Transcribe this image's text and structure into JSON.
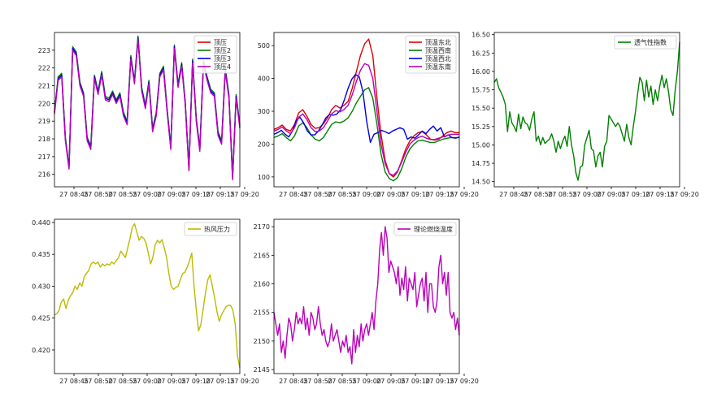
{
  "chart_data": [
    {
      "type": "line",
      "x_ticks": [
        "27 08:45",
        "27 08:50",
        "27 08:55",
        "27 09:00",
        "27 09:05",
        "27 09:10",
        "27 09:15",
        "27 09:20"
      ],
      "x_range": [
        "08:41",
        "09:19"
      ],
      "ylim": [
        215.3,
        224
      ],
      "yticks": [
        216,
        217,
        218,
        219,
        220,
        221,
        222,
        223
      ],
      "legend_position": "top-right",
      "series": [
        {
          "name": "顶压",
          "color": "#dd0000",
          "y": [
            219.5,
            221.4,
            221.6,
            218.0,
            216.4,
            223.1,
            222.8,
            221.1,
            220.5,
            218.0,
            217.5,
            221.5,
            220.6,
            221.7,
            220.3,
            220.2,
            220.6,
            220.1,
            220.5,
            219.4,
            218.9,
            222.6,
            221.2,
            223.7,
            220.8,
            219.8,
            221.2,
            218.5,
            219.4,
            221.6,
            222.0,
            219.6,
            217.5,
            223.2,
            221.0,
            222.2,
            220.0,
            216.3,
            222.4,
            219.1,
            217.4,
            222.3,
            221.4,
            220.7,
            220.5,
            218.3,
            217.8,
            221.9,
            220.4,
            215.8,
            220.4,
            218.7
          ]
        },
        {
          "name": "顶压2",
          "color": "#008000",
          "y": [
            219.5,
            221.5,
            221.7,
            218.1,
            216.4,
            223.2,
            222.9,
            221.2,
            220.6,
            218.1,
            217.6,
            221.6,
            220.7,
            221.8,
            220.4,
            220.3,
            220.7,
            220.2,
            220.6,
            219.5,
            219.0,
            222.7,
            221.3,
            223.8,
            220.9,
            219.9,
            221.3,
            218.6,
            219.5,
            221.7,
            222.1,
            219.7,
            217.6,
            223.3,
            221.1,
            222.3,
            220.1,
            216.4,
            222.5,
            219.2,
            217.5,
            222.4,
            221.5,
            220.8,
            220.6,
            218.4,
            217.9,
            222.0,
            220.5,
            215.9,
            220.5,
            218.8
          ]
        },
        {
          "name": "顶压3",
          "color": "#0000dd",
          "y": [
            219.5,
            221.4,
            221.6,
            218.0,
            216.4,
            223.1,
            222.8,
            221.1,
            220.5,
            218.0,
            217.5,
            221.5,
            220.6,
            221.7,
            220.3,
            220.2,
            220.6,
            220.1,
            220.5,
            219.4,
            218.9,
            222.6,
            221.2,
            223.7,
            220.8,
            219.8,
            221.2,
            218.5,
            219.4,
            221.6,
            222.0,
            219.6,
            217.5,
            223.2,
            221.0,
            222.2,
            220.0,
            216.3,
            222.4,
            219.1,
            217.4,
            222.3,
            221.4,
            220.7,
            220.5,
            218.3,
            217.8,
            221.9,
            220.4,
            215.8,
            220.4,
            218.7
          ]
        },
        {
          "name": "顶压4",
          "color": "#bb00bb",
          "y": [
            219.4,
            221.3,
            221.5,
            217.9,
            216.3,
            223.0,
            222.7,
            221.0,
            220.4,
            217.9,
            217.4,
            221.4,
            220.5,
            221.6,
            220.2,
            220.1,
            220.5,
            220.0,
            220.4,
            219.3,
            218.8,
            222.5,
            221.1,
            223.6,
            220.7,
            219.7,
            221.1,
            218.4,
            219.3,
            221.5,
            221.9,
            219.5,
            217.4,
            223.1,
            220.9,
            222.1,
            219.9,
            216.2,
            222.3,
            219.0,
            217.3,
            222.2,
            221.3,
            220.6,
            220.4,
            218.2,
            217.7,
            221.8,
            220.3,
            215.7,
            220.3,
            218.6
          ]
        }
      ]
    },
    {
      "type": "line",
      "x_ticks": [
        "27 08:45",
        "27 08:50",
        "27 08:55",
        "27 09:00",
        "27 09:05",
        "27 09:10",
        "27 09:15",
        "27 09:20"
      ],
      "x_range": [
        "08:41",
        "09:19"
      ],
      "ylim": [
        70,
        540
      ],
      "yticks": [
        100,
        200,
        300,
        400,
        500
      ],
      "legend_position": "top-right",
      "series": [
        {
          "name": "顶温东北",
          "color": "#dd0000",
          "y": [
            245,
            250,
            258,
            245,
            240,
            260,
            295,
            305,
            285,
            260,
            248,
            250,
            262,
            280,
            305,
            318,
            310,
            318,
            330,
            370,
            420,
            470,
            505,
            520,
            470,
            340,
            230,
            150,
            110,
            100,
            115,
            150,
            185,
            210,
            225,
            235,
            238,
            228,
            215,
            212,
            215,
            225,
            235,
            240,
            235,
            235
          ]
        },
        {
          "name": "顶温西南",
          "color": "#008000",
          "y": [
            220,
            225,
            232,
            220,
            210,
            225,
            255,
            265,
            250,
            228,
            215,
            210,
            220,
            240,
            260,
            268,
            265,
            270,
            280,
            300,
            325,
            345,
            365,
            372,
            340,
            260,
            170,
            115,
            95,
            88,
            98,
            125,
            160,
            185,
            200,
            210,
            212,
            208,
            205,
            205,
            210,
            215,
            218,
            220,
            220,
            220
          ]
        },
        {
          "name": "顶温西北",
          "color": "#0000dd",
          "y": [
            230,
            235,
            242,
            230,
            222,
            240,
            272,
            282,
            265,
            240,
            228,
            228,
            240,
            258,
            280,
            290,
            288,
            292,
            305,
            335,
            370,
            398,
            412,
            405,
            360,
            270,
            205,
            230,
            235,
            242,
            238,
            232,
            240,
            245,
            250,
            245,
            215,
            222,
            218,
            228,
            240,
            232,
            245,
            255,
            240,
            250,
            222,
            228,
            220,
            218,
            222
          ]
        },
        {
          "name": "顶温东南",
          "color": "#bb00bb",
          "y": [
            240,
            245,
            252,
            240,
            232,
            250,
            282,
            292,
            275,
            250,
            238,
            240,
            250,
            270,
            292,
            302,
            298,
            305,
            318,
            350,
            390,
            425,
            445,
            440,
            400,
            300,
            200,
            140,
            110,
            105,
            118,
            145,
            175,
            200,
            212,
            220,
            224,
            218,
            214,
            214,
            218,
            222,
            226,
            230,
            230,
            230
          ]
        }
      ]
    },
    {
      "type": "line",
      "x_ticks": [
        "27 08:45",
        "27 08:50",
        "27 08:55",
        "27 09:00",
        "27 09:05",
        "27 09:10",
        "27 09:15",
        "27 09:20"
      ],
      "x_range": [
        "08:41",
        "09:19"
      ],
      "ylim": [
        14.43,
        16.53
      ],
      "yticks": [
        14.5,
        14.75,
        15.0,
        15.25,
        15.5,
        15.75,
        16.0,
        16.25,
        16.5
      ],
      "legend_position": "top-right",
      "series": [
        {
          "name": "透气性指数",
          "color": "#008000",
          "y": [
            15.85,
            15.9,
            15.78,
            15.72,
            15.65,
            15.55,
            15.18,
            15.45,
            15.3,
            15.25,
            15.18,
            15.42,
            15.22,
            15.38,
            15.3,
            15.28,
            15.2,
            15.35,
            15.45,
            15.05,
            15.12,
            15.0,
            15.1,
            15.02,
            15.05,
            15.08,
            15.15,
            15.05,
            14.9,
            15.05,
            14.95,
            15.05,
            15.12,
            14.98,
            15.25,
            15.0,
            14.85,
            14.62,
            14.52,
            14.7,
            14.72,
            15.0,
            15.1,
            15.2,
            14.95,
            14.92,
            14.7,
            14.85,
            14.9,
            14.7,
            14.98,
            15.05,
            15.4,
            15.35,
            15.3,
            15.25,
            15.3,
            15.25,
            15.15,
            15.05,
            15.28,
            15.1,
            15.0,
            15.25,
            15.45,
            15.7,
            15.92,
            15.85,
            15.6,
            15.88,
            15.65,
            15.8,
            15.55,
            15.75,
            15.6,
            15.8,
            15.95,
            15.78,
            15.9,
            15.72,
            15.48,
            15.4,
            15.75,
            16.0,
            16.4
          ]
        }
      ]
    },
    {
      "type": "line",
      "x_ticks": [
        "27 08:45",
        "27 08:50",
        "27 08:55",
        "27 09:00",
        "27 09:05",
        "27 09:10",
        "27 09:15",
        "27 09:20"
      ],
      "x_range": [
        "08:41",
        "09:19"
      ],
      "ylim": [
        0.4163,
        0.4405
      ],
      "yticks": [
        0.42,
        0.425,
        0.43,
        0.435,
        0.44
      ],
      "legend_position": "top-right",
      "series": [
        {
          "name": "热风压力",
          "color": "#bbbb00",
          "y": [
            0.4255,
            0.4257,
            0.4262,
            0.4275,
            0.428,
            0.4265,
            0.4278,
            0.4285,
            0.429,
            0.43,
            0.4295,
            0.4305,
            0.43,
            0.4315,
            0.432,
            0.4325,
            0.4335,
            0.4338,
            0.4335,
            0.4338,
            0.433,
            0.4335,
            0.4332,
            0.4335,
            0.4333,
            0.4338,
            0.4335,
            0.434,
            0.4345,
            0.4355,
            0.435,
            0.4345,
            0.436,
            0.4375,
            0.4392,
            0.4398,
            0.4385,
            0.4372,
            0.4378,
            0.4375,
            0.4368,
            0.4352,
            0.4335,
            0.4345,
            0.4365,
            0.4372,
            0.4368,
            0.4373,
            0.436,
            0.4345,
            0.432,
            0.43,
            0.4295,
            0.4298,
            0.43,
            0.431,
            0.432,
            0.4322,
            0.433,
            0.434,
            0.4352,
            0.43,
            0.4262,
            0.423,
            0.424,
            0.4265,
            0.429,
            0.431,
            0.4318,
            0.43,
            0.4282,
            0.426,
            0.4245,
            0.4255,
            0.4262,
            0.4268,
            0.427,
            0.427,
            0.4262,
            0.424,
            0.419,
            0.4172
          ]
        }
      ]
    },
    {
      "type": "line",
      "x_ticks": [
        "27 08:45",
        "27 08:50",
        "27 08:55",
        "27 09:00",
        "27 09:05",
        "27 09:10",
        "27 09:15",
        "27 09:20"
      ],
      "x_range": [
        "08:41",
        "09:19"
      ],
      "ylim": [
        2144.3,
        2171.3
      ],
      "yticks": [
        2145,
        2150,
        2155,
        2160,
        2165,
        2170
      ],
      "legend_position": "top-right",
      "series": [
        {
          "name": "理论燃烧温度",
          "color": "#bb00bb",
          "y": [
            2155,
            2153,
            2151,
            2153,
            2148,
            2150,
            2147,
            2151,
            2154,
            2153,
            2150,
            2152,
            2155,
            2153,
            2154,
            2153,
            2156,
            2152,
            2154,
            2151,
            2155,
            2154,
            2152,
            2153,
            2156,
            2153,
            2151,
            2152,
            2150,
            2149,
            2150,
            2153,
            2150,
            2151,
            2152,
            2150,
            2148,
            2150,
            2149,
            2151,
            2148,
            2149,
            2146,
            2152,
            2148,
            2151,
            2149,
            2153,
            2150,
            2152,
            2153,
            2151,
            2153,
            2155,
            2152,
            2157,
            2160,
            2166,
            2169,
            2165,
            2170,
            2168,
            2162,
            2164,
            2163,
            2162,
            2160,
            2163,
            2158,
            2161,
            2159,
            2163,
            2157,
            2161,
            2160,
            2159,
            2162,
            2156,
            2158,
            2160,
            2161,
            2157,
            2162,
            2155,
            2160,
            2160,
            2156,
            2155,
            2157,
            2163,
            2165,
            2160,
            2162,
            2158,
            2162,
            2155,
            2154,
            2155,
            2152,
            2154,
            2151
          ]
        }
      ]
    }
  ]
}
